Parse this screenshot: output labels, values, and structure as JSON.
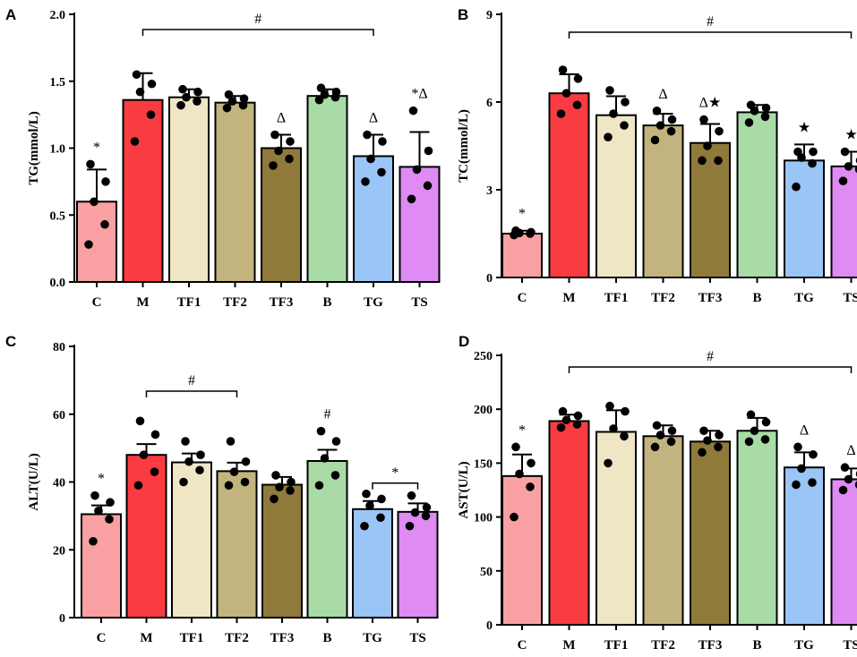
{
  "colors": {
    "C": "#F9A1A2",
    "M": "#F93C41",
    "TF1": "#EEE6C5",
    "TF2": "#C3B47F",
    "TF3": "#8F7A3C",
    "B": "#A9DBA6",
    "TG": "#9BC4F7",
    "TS": "#DE8BF4"
  },
  "chart_data": [
    {
      "panel": "A",
      "type": "bar",
      "ylabel": "TG(mmol/L)",
      "ylim": [
        0,
        2.0
      ],
      "yticks": [
        "0.0",
        "0.5",
        "1.0",
        "1.5",
        "2.0"
      ],
      "categories": [
        "C",
        "M",
        "TF1",
        "TF2",
        "TF3",
        "B",
        "TG",
        "TS"
      ],
      "values": [
        0.6,
        1.36,
        1.38,
        1.34,
        1.0,
        1.39,
        0.94,
        0.86
      ],
      "errors": [
        0.24,
        0.2,
        0.06,
        0.05,
        0.1,
        0.05,
        0.16,
        0.26
      ],
      "points": [
        [
          0.28,
          0.43,
          0.6,
          0.75,
          0.88
        ],
        [
          1.05,
          1.25,
          1.42,
          1.48,
          1.55
        ],
        [
          1.32,
          1.35,
          1.38,
          1.42,
          1.44
        ],
        [
          1.3,
          1.32,
          1.35,
          1.37,
          1.4
        ],
        [
          0.87,
          0.92,
          0.98,
          1.05,
          1.1
        ],
        [
          1.36,
          1.38,
          1.4,
          1.42,
          1.45
        ],
        [
          0.75,
          0.82,
          0.92,
          1.05,
          1.1
        ],
        [
          0.62,
          0.72,
          0.84,
          0.98,
          1.28
        ]
      ],
      "bracket": {
        "from": "M",
        "to": "TG",
        "label": "#"
      },
      "marks": [
        {
          "category": "C",
          "label": "*"
        },
        {
          "category": "TF3",
          "label": "Δ"
        },
        {
          "category": "TG",
          "label": "Δ"
        },
        {
          "category": "TS",
          "label": "*Δ"
        }
      ]
    },
    {
      "panel": "B",
      "type": "bar",
      "ylabel": "TC(mmol/L)",
      "ylim": [
        0,
        9
      ],
      "yticks": [
        "0",
        "3",
        "6",
        "9"
      ],
      "categories": [
        "C",
        "M",
        "TF1",
        "TF2",
        "TF3",
        "B",
        "TG",
        "TS"
      ],
      "values": [
        1.5,
        6.3,
        5.55,
        5.2,
        4.6,
        5.65,
        4.0,
        3.8
      ],
      "errors": [
        0.1,
        0.65,
        0.65,
        0.4,
        0.65,
        0.25,
        0.55,
        0.5
      ],
      "points": [
        [
          1.45,
          1.5,
          1.52,
          1.55,
          1.6
        ],
        [
          5.6,
          5.9,
          6.3,
          6.8,
          7.1
        ],
        [
          4.8,
          5.2,
          5.6,
          6.0,
          6.4
        ],
        [
          4.7,
          5.0,
          5.2,
          5.4,
          5.7
        ],
        [
          4.0,
          4.0,
          4.5,
          5.0,
          5.4
        ],
        [
          5.3,
          5.5,
          5.7,
          5.8,
          5.9
        ],
        [
          3.1,
          3.9,
          4.1,
          4.3,
          4.3
        ],
        [
          3.3,
          3.7,
          3.8,
          4.0,
          4.3
        ]
      ],
      "bracket": {
        "from": "M",
        "to": "TS",
        "label": "#"
      },
      "marks": [
        {
          "category": "C",
          "label": "*"
        },
        {
          "category": "TF2",
          "label": "Δ"
        },
        {
          "category": "TF3",
          "label": "Δ★"
        },
        {
          "category": "TG",
          "label": "★"
        },
        {
          "category": "TS",
          "label": "★"
        }
      ]
    },
    {
      "panel": "C",
      "type": "bar",
      "ylabel": "ALT(U/L)",
      "ylim": [
        0,
        80
      ],
      "yticks": [
        "0",
        "20",
        "40",
        "60",
        "80"
      ],
      "categories": [
        "C",
        "M",
        "TF1",
        "TF2",
        "TF3",
        "B",
        "TG",
        "TS"
      ],
      "values": [
        30.5,
        48.0,
        45.8,
        43.2,
        39.2,
        46.2,
        32.0,
        31.2
      ],
      "errors": [
        2.6,
        3.2,
        2.6,
        2.5,
        2.3,
        3.3,
        2.4,
        2.5
      ],
      "points": [
        [
          22.5,
          29.0,
          31.5,
          34.0,
          36.0
        ],
        [
          39.0,
          43.0,
          48.0,
          54.0,
          58.0
        ],
        [
          40.0,
          43.5,
          46.0,
          48.0,
          52.0
        ],
        [
          39.0,
          40.0,
          43.0,
          46.0,
          52.0
        ],
        [
          35.0,
          37.5,
          38.5,
          40.0,
          42.0
        ],
        [
          39.0,
          42.0,
          47.0,
          52.0,
          55.0
        ],
        [
          27.0,
          29.5,
          33.0,
          35.0,
          36.5
        ],
        [
          27.0,
          30.0,
          31.0,
          32.5,
          36.0
        ]
      ],
      "brackets": [
        {
          "from": "M",
          "to": "TF2",
          "label": "#"
        },
        {
          "from": "TG",
          "to": "TS",
          "label": "*"
        }
      ],
      "marks": [
        {
          "category": "C",
          "label": "*"
        },
        {
          "category": "B",
          "label": "#"
        }
      ]
    },
    {
      "panel": "D",
      "type": "bar",
      "ylabel": "AST(U/L)",
      "ylim": [
        0,
        250
      ],
      "yticks": [
        "0",
        "50",
        "100",
        "150",
        "200",
        "250"
      ],
      "categories": [
        "C",
        "M",
        "TF1",
        "TF2",
        "TF3",
        "B",
        "TG",
        "TS"
      ],
      "values": [
        138,
        189,
        179,
        175,
        170,
        180,
        146,
        135
      ],
      "errors": [
        20,
        6,
        20,
        10,
        10,
        12,
        14,
        10
      ],
      "points": [
        [
          100,
          128,
          140,
          150,
          165
        ],
        [
          183,
          186,
          190,
          194,
          198
        ],
        [
          150,
          175,
          182,
          198,
          203
        ],
        [
          165,
          170,
          176,
          180,
          185
        ],
        [
          160,
          165,
          171,
          176,
          180
        ],
        [
          170,
          172,
          180,
          188,
          195
        ],
        [
          130,
          132,
          145,
          158,
          165
        ],
        [
          125,
          130,
          135,
          140,
          146
        ]
      ],
      "bracket": {
        "from": "M",
        "to": "TS",
        "label": "#"
      },
      "marks": [
        {
          "category": "C",
          "label": "*"
        },
        {
          "category": "TG",
          "label": "Δ"
        },
        {
          "category": "TS",
          "label": "Δ"
        }
      ]
    }
  ]
}
